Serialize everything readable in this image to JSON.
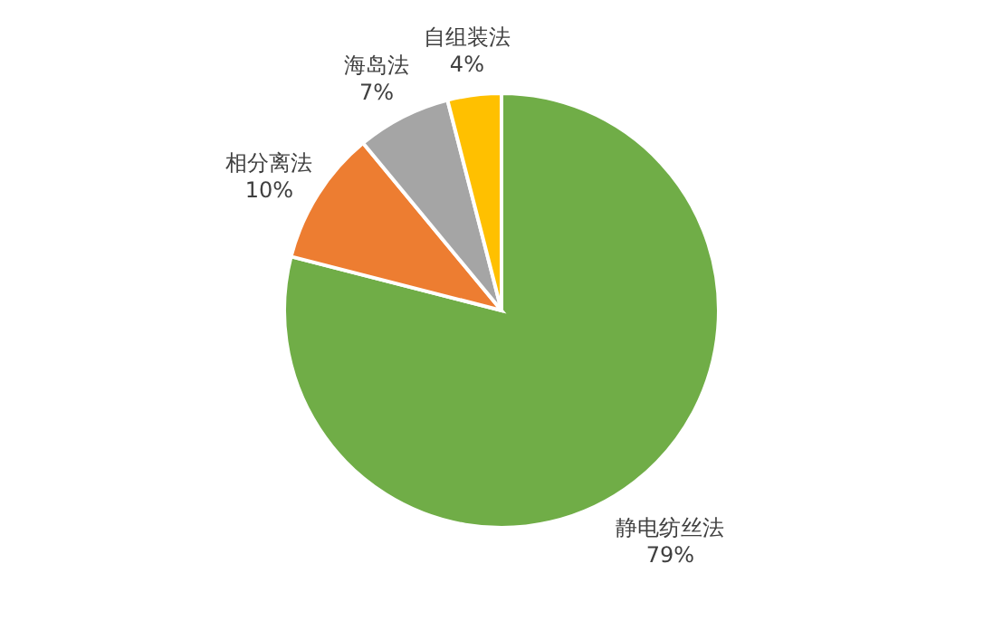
{
  "chart_data": {
    "type": "pie",
    "categories": [
      "静电纺丝法",
      "相分离法",
      "海岛法",
      "自组装法"
    ],
    "values": [
      79,
      10,
      7,
      4
    ],
    "value_labels": [
      "79%",
      "10%",
      "7%",
      "4%"
    ],
    "colors": [
      "#70ad47",
      "#ed7d31",
      "#a5a5a5",
      "#ffc000"
    ]
  }
}
